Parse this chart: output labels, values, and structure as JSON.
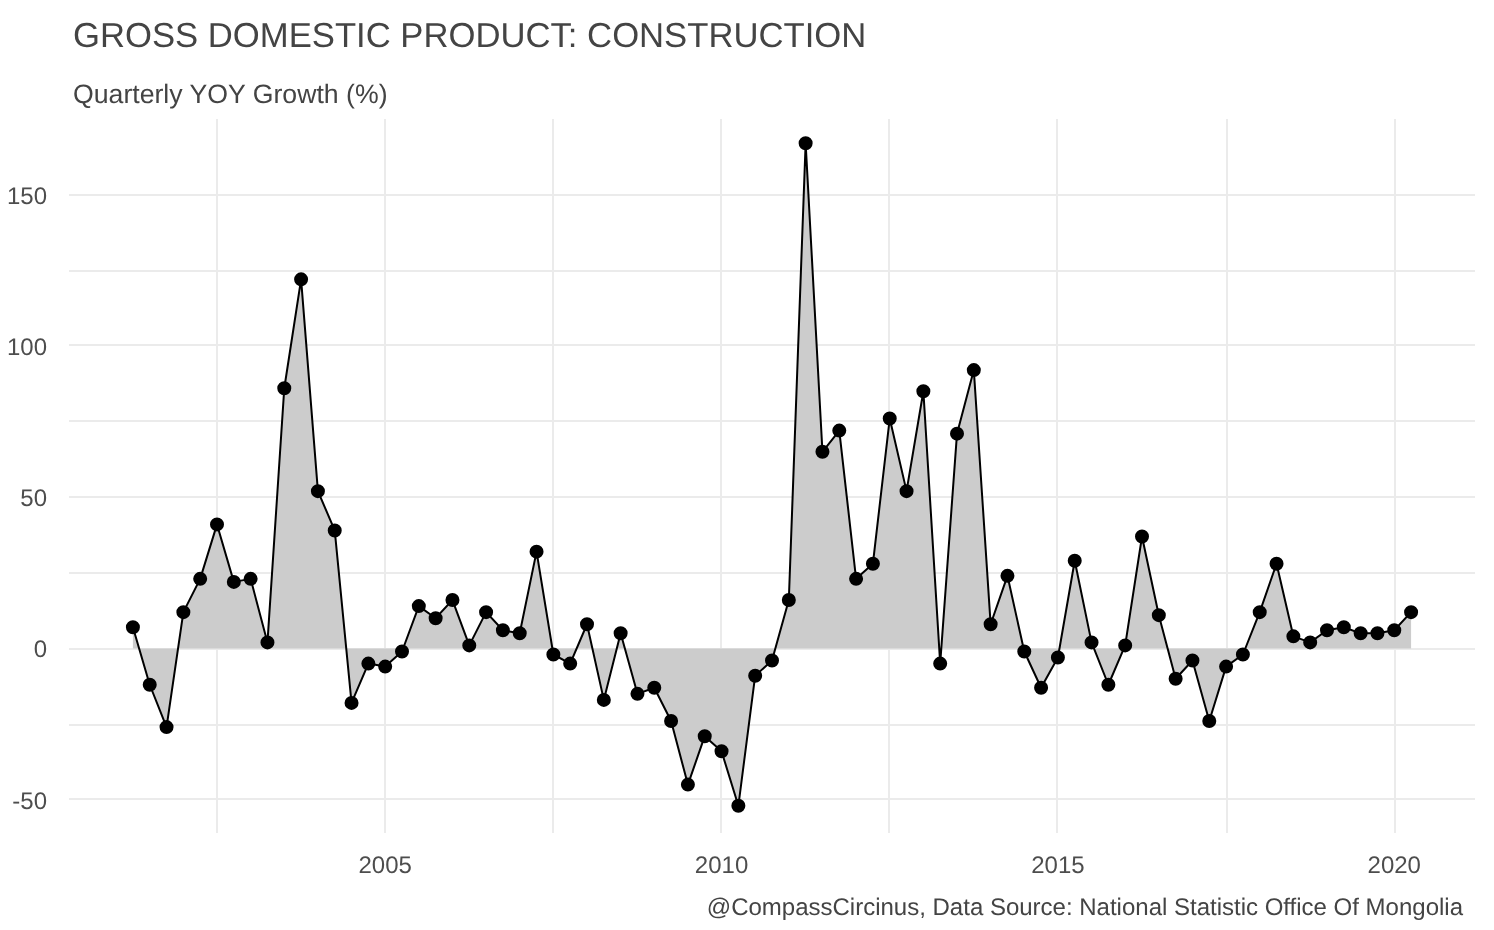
{
  "chart_data": {
    "type": "area",
    "title": "GROSS DOMESTIC PRODUCT: CONSTRUCTION",
    "subtitle": "Quarterly YOY Growth (%)",
    "annotations": [
      "@CompassCircinus, Data Source: National Statistic Office Of Mongolia"
    ],
    "x": [
      2001.25,
      2001.5,
      2001.75,
      2002.0,
      2002.25,
      2002.5,
      2002.75,
      2003.0,
      2003.25,
      2003.5,
      2003.75,
      2004.0,
      2004.25,
      2004.5,
      2004.75,
      2005.0,
      2005.25,
      2005.5,
      2005.75,
      2006.0,
      2006.25,
      2006.5,
      2006.75,
      2007.0,
      2007.25,
      2007.5,
      2007.75,
      2008.0,
      2008.25,
      2008.5,
      2008.75,
      2009.0,
      2009.25,
      2009.5,
      2009.75,
      2010.0,
      2010.25,
      2010.5,
      2010.75,
      2011.0,
      2011.25,
      2011.5,
      2011.75,
      2012.0,
      2012.25,
      2012.5,
      2012.75,
      2013.0,
      2013.25,
      2013.5,
      2013.75,
      2014.0,
      2014.25,
      2014.5,
      2014.75,
      2015.0,
      2015.25,
      2015.5,
      2015.75,
      2016.0,
      2016.25,
      2016.5,
      2016.75,
      2017.0,
      2017.25,
      2017.5,
      2017.75,
      2018.0,
      2018.25,
      2018.5,
      2018.75,
      2019.0,
      2019.25,
      2019.5,
      2019.75,
      2020.0,
      2020.25
    ],
    "series": [
      {
        "color": "#000000",
        "values": [
          7,
          -12,
          -26,
          12,
          23,
          41,
          22,
          23,
          2,
          86,
          122,
          52,
          39,
          -18,
          -5,
          -6,
          -1,
          14,
          10,
          16,
          1,
          12,
          6,
          5,
          32,
          -2,
          -5,
          8,
          -17,
          5,
          -15,
          -13,
          -24,
          -45,
          -29,
          -34,
          -52,
          -9,
          -4,
          16,
          167,
          65,
          72,
          23,
          28,
          76,
          52,
          85,
          -5,
          71,
          92,
          8,
          24,
          -1,
          -13,
          -3,
          29,
          2,
          -12,
          1,
          37,
          11,
          -10,
          -4,
          -24,
          -6,
          -2,
          12,
          28,
          4,
          2,
          6,
          7,
          5,
          5,
          6,
          12
        ]
      }
    ],
    "marker": "circle",
    "line_style": "solid",
    "xlim": [
      2000.3,
      2021.2
    ],
    "ylim": [
      -61,
      175
    ],
    "xticks": [
      {
        "value": 2002.5,
        "label": null
      },
      2005,
      {
        "value": 2007.5,
        "label": null
      },
      2010,
      {
        "value": 2012.5,
        "label": null
      },
      2015,
      {
        "value": 2017.5,
        "label": null
      },
      2020
    ],
    "yticks": [
      -50,
      {
        "value": -25,
        "label": null
      },
      0,
      {
        "value": 25,
        "label": null
      },
      50,
      {
        "value": 75,
        "label": null
      },
      100,
      {
        "value": 125,
        "label": null
      },
      150
    ],
    "grid": true
  }
}
